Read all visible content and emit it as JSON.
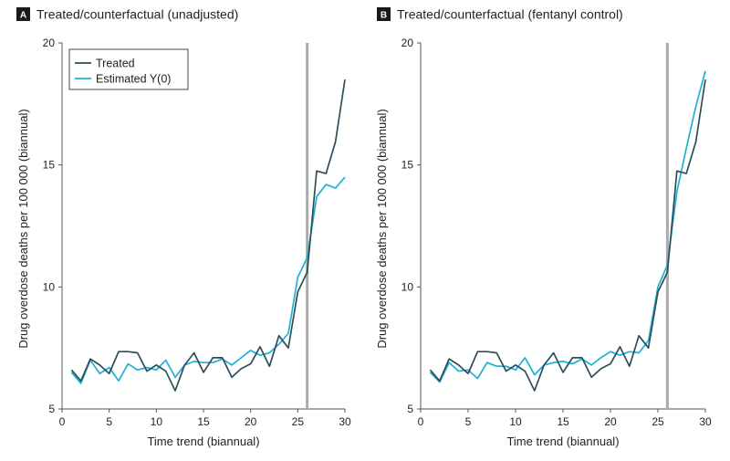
{
  "colors": {
    "treated": "#2e4d5a",
    "estimated": "#1fb0d6",
    "intervention_line": "#aaaaaa",
    "axis": "#555555",
    "letter_badge": "#1a1a1a"
  },
  "chart_data": [
    {
      "type": "line",
      "panel_letter": "A",
      "title": "Treated/counterfactual (unadjusted)",
      "xlabel": "Time trend (biannual)",
      "ylabel": "Drug overdose deaths per 100 000 (biannual)",
      "xlim": [
        0,
        30
      ],
      "ylim": [
        5,
        20
      ],
      "xticks": [
        0,
        5,
        10,
        15,
        20,
        25,
        30
      ],
      "yticks": [
        5,
        10,
        15,
        20
      ],
      "grid": false,
      "intervention_x": 26,
      "legend": {
        "position": "top-left",
        "entries": [
          "Treated",
          "Estimated  Y(0)"
        ]
      },
      "x": [
        1,
        2,
        3,
        4,
        5,
        6,
        7,
        8,
        9,
        10,
        11,
        12,
        13,
        14,
        15,
        16,
        17,
        18,
        19,
        20,
        21,
        22,
        23,
        24,
        25,
        26,
        27,
        28,
        29,
        30
      ],
      "series": [
        {
          "name": "Treated",
          "values": [
            6.6,
            6.15,
            7.05,
            6.8,
            6.45,
            7.35,
            7.35,
            7.3,
            6.55,
            6.8,
            6.55,
            5.75,
            6.8,
            7.3,
            6.5,
            7.1,
            7.1,
            6.3,
            6.65,
            6.85,
            7.55,
            6.75,
            8.0,
            7.5,
            9.8,
            10.6,
            14.75,
            14.65,
            15.95,
            18.5
          ]
        },
        {
          "name": "Estimated  Y(0)",
          "values": [
            6.5,
            6.05,
            7.0,
            6.45,
            6.7,
            6.15,
            6.85,
            6.6,
            6.7,
            6.6,
            7.0,
            6.3,
            6.8,
            6.95,
            6.9,
            6.9,
            7.05,
            6.8,
            7.1,
            7.4,
            7.2,
            7.3,
            7.65,
            8.1,
            10.4,
            11.2,
            13.7,
            14.2,
            14.05,
            14.5
          ]
        }
      ]
    },
    {
      "type": "line",
      "panel_letter": "B",
      "title": "Treated/counterfactual (fentanyl control)",
      "xlabel": "Time trend (biannual)",
      "ylabel": "Drug overdose deaths per 100 000 (biannual)",
      "xlim": [
        0,
        30
      ],
      "ylim": [
        5,
        20
      ],
      "xticks": [
        0,
        5,
        10,
        15,
        20,
        25,
        30
      ],
      "yticks": [
        5,
        10,
        15,
        20
      ],
      "grid": false,
      "intervention_x": 26,
      "legend": null,
      "x": [
        1,
        2,
        3,
        4,
        5,
        6,
        7,
        8,
        9,
        10,
        11,
        12,
        13,
        14,
        15,
        16,
        17,
        18,
        19,
        20,
        21,
        22,
        23,
        24,
        25,
        26,
        27,
        28,
        29,
        30
      ],
      "series": [
        {
          "name": "Treated",
          "values": [
            6.6,
            6.15,
            7.05,
            6.8,
            6.45,
            7.35,
            7.35,
            7.3,
            6.55,
            6.8,
            6.55,
            5.75,
            6.8,
            7.3,
            6.5,
            7.1,
            7.1,
            6.3,
            6.65,
            6.85,
            7.55,
            6.75,
            8.0,
            7.5,
            9.8,
            10.6,
            14.75,
            14.65,
            15.95,
            18.5
          ]
        },
        {
          "name": "Estimated  Y(0)",
          "values": [
            6.5,
            6.1,
            6.9,
            6.55,
            6.6,
            6.25,
            6.9,
            6.75,
            6.75,
            6.6,
            7.1,
            6.4,
            6.8,
            6.9,
            6.95,
            6.85,
            7.05,
            6.8,
            7.1,
            7.35,
            7.2,
            7.35,
            7.3,
            7.8,
            10.0,
            10.9,
            13.9,
            15.7,
            17.4,
            18.85
          ]
        }
      ]
    }
  ]
}
